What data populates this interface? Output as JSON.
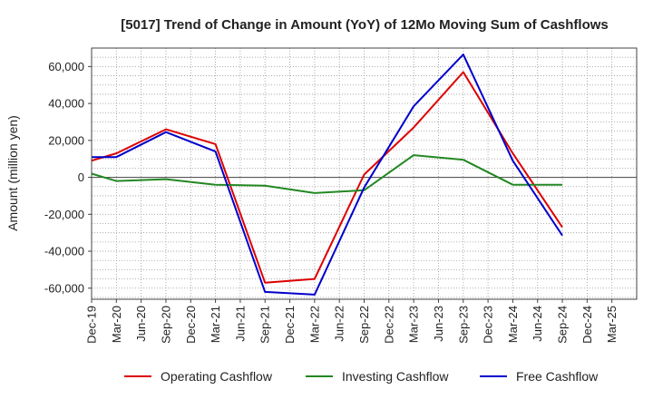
{
  "chart_data": {
    "type": "line",
    "title": "[5017]  Trend of Change in Amount (YoY) of 12Mo Moving Sum of Cashflows",
    "xlabel": "",
    "ylabel": "Amount (million yen)",
    "ylim": [
      -66000,
      70000
    ],
    "yticks": [
      60000,
      40000,
      20000,
      0,
      -20000,
      -40000,
      -60000
    ],
    "ytick_labels": [
      "60,000",
      "40,000",
      "20,000",
      "0",
      "-20,000",
      "-40,000",
      "-60,000"
    ],
    "categories": [
      "Dec-19",
      "Mar-20",
      "Jun-20",
      "Sep-20",
      "Dec-20",
      "Mar-21",
      "Jun-21",
      "Sep-21",
      "Dec-21",
      "Mar-22",
      "Jun-22",
      "Sep-22",
      "Dec-22",
      "Mar-23",
      "Jun-23",
      "Sep-23",
      "Dec-23",
      "Mar-24",
      "Jun-24",
      "Sep-24",
      "Dec-24",
      "Mar-25"
    ],
    "grid": true,
    "legend_position": "bottom",
    "series": [
      {
        "name": "Operating Cashflow",
        "color": "#dd0000",
        "values": [
          9000,
          13000,
          null,
          26000,
          null,
          18000,
          null,
          -57000,
          null,
          -55000,
          null,
          1500,
          null,
          27000,
          null,
          57000,
          null,
          13000,
          null,
          -27000,
          null,
          null
        ]
      },
      {
        "name": "Investing Cashflow",
        "color": "#228822",
        "values": [
          2000,
          -2000,
          null,
          -1000,
          null,
          -4000,
          null,
          -4500,
          null,
          -8500,
          null,
          -7000,
          null,
          12000,
          null,
          9500,
          null,
          -4000,
          null,
          -4000,
          null,
          null
        ]
      },
      {
        "name": "Free Cashflow",
        "color": "#0000cc",
        "values": [
          11000,
          11000,
          null,
          24500,
          null,
          14000,
          null,
          -62000,
          null,
          -63500,
          null,
          -5500,
          null,
          38500,
          null,
          66500,
          null,
          9000,
          null,
          -31500,
          null,
          null
        ]
      }
    ]
  }
}
